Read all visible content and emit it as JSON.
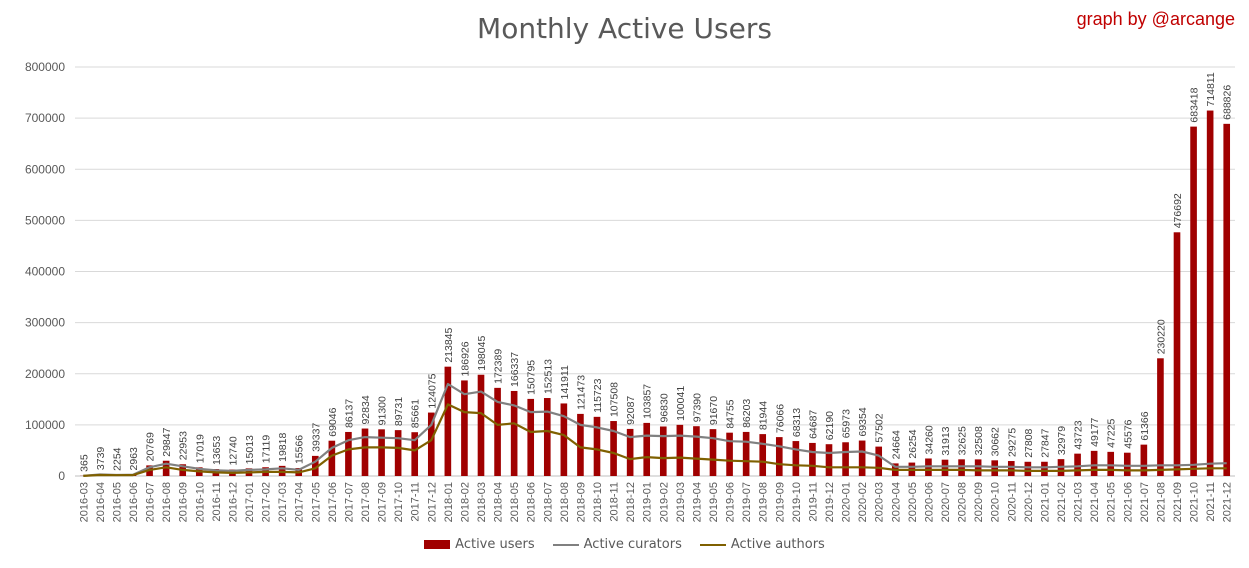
{
  "title": "Monthly Active Users",
  "credit": "graph by @arcange",
  "chart_data": {
    "type": "bar",
    "title": "Monthly Active Users",
    "ylim": [
      0,
      800000
    ],
    "yticks": [
      0,
      100000,
      200000,
      300000,
      400000,
      500000,
      600000,
      700000,
      800000
    ],
    "grid": true,
    "legend_position": "bottom",
    "categories": [
      "2016-03",
      "2016-04",
      "2016-05",
      "2016-06",
      "2016-07",
      "2016-08",
      "2016-09",
      "2016-10",
      "2016-11",
      "2016-12",
      "2017-01",
      "2017-02",
      "2017-03",
      "2017-04",
      "2017-05",
      "2017-06",
      "2017-07",
      "2017-08",
      "2017-09",
      "2017-10",
      "2017-11",
      "2017-12",
      "2018-01",
      "2018-02",
      "2018-03",
      "2018-04",
      "2018-05",
      "2018-06",
      "2018-07",
      "2018-08",
      "2018-09",
      "2018-10",
      "2018-11",
      "2018-12",
      "2019-01",
      "2019-02",
      "2019-03",
      "2019-04",
      "2019-05",
      "2019-06",
      "2019-07",
      "2019-08",
      "2019-09",
      "2019-10",
      "2019-11",
      "2019-12",
      "2020-01",
      "2020-02",
      "2020-03",
      "2020-04",
      "2020-05",
      "2020-06",
      "2020-07",
      "2020-08",
      "2020-09",
      "2020-10",
      "2020-11",
      "2020-12",
      "2021-01",
      "2021-02",
      "2021-03",
      "2021-04",
      "2021-05",
      "2021-06",
      "2021-07",
      "2021-08",
      "2021-09",
      "2021-10",
      "2021-11",
      "2021-12"
    ],
    "series": [
      {
        "name": "Active users",
        "type": "bar",
        "color": "#a00000",
        "values": [
          365,
          3739,
          2254,
          2963,
          20769,
          29847,
          22953,
          17019,
          13653,
          12740,
          15013,
          17119,
          19818,
          15566,
          39337,
          69046,
          86137,
          92834,
          91300,
          89731,
          85661,
          124075,
          213845,
          186926,
          198045,
          172389,
          166337,
          150795,
          152513,
          141911,
          121473,
          115723,
          107508,
          92087,
          103857,
          96830,
          100041,
          97390,
          91670,
          84755,
          86203,
          81944,
          76066,
          68313,
          64687,
          62190,
          65973,
          69354,
          57502,
          24664,
          26254,
          34260,
          31913,
          32625,
          32508,
          30662,
          29275,
          27808,
          27847,
          32979,
          43723,
          49177,
          47225,
          45576,
          61366,
          230220,
          476692,
          683418,
          714811,
          688826
        ]
      },
      {
        "name": "Active curators",
        "type": "line",
        "color": "#808080",
        "values": [
          300,
          3000,
          2000,
          2500,
          17000,
          24000,
          19000,
          14000,
          11000,
          10000,
          12000,
          13000,
          15000,
          12000,
          28000,
          55000,
          70000,
          76000,
          75000,
          74000,
          70000,
          100000,
          180000,
          160000,
          165000,
          145000,
          138000,
          125000,
          126000,
          117000,
          100000,
          95000,
          88000,
          76000,
          79000,
          78000,
          79000,
          77000,
          74000,
          68000,
          67000,
          63000,
          58000,
          52000,
          47000,
          45000,
          47000,
          48000,
          40000,
          18000,
          18000,
          19000,
          19000,
          19000,
          19000,
          18000,
          18000,
          17000,
          17000,
          18000,
          19000,
          21000,
          21000,
          20000,
          20000,
          21000,
          21000,
          22000,
          24000,
          25000
        ]
      },
      {
        "name": "Active authors",
        "type": "line",
        "color": "#7f6000",
        "values": [
          200,
          2000,
          1500,
          1800,
          12000,
          17000,
          12000,
          9000,
          7000,
          6000,
          7000,
          8000,
          8000,
          7000,
          15000,
          40000,
          52000,
          56000,
          56000,
          55000,
          50000,
          70000,
          140000,
          125000,
          123000,
          100000,
          103000,
          86000,
          88000,
          80000,
          56000,
          52000,
          45000,
          33000,
          37000,
          35000,
          36000,
          34000,
          32000,
          30000,
          29000,
          28000,
          23000,
          21000,
          20000,
          17000,
          17000,
          17000,
          16000,
          12000,
          12000,
          12000,
          12000,
          12000,
          11000,
          11000,
          11000,
          10000,
          10000,
          10000,
          11000,
          12000,
          12000,
          11000,
          11000,
          12000,
          13000,
          14000,
          15000,
          15000
        ]
      }
    ]
  }
}
